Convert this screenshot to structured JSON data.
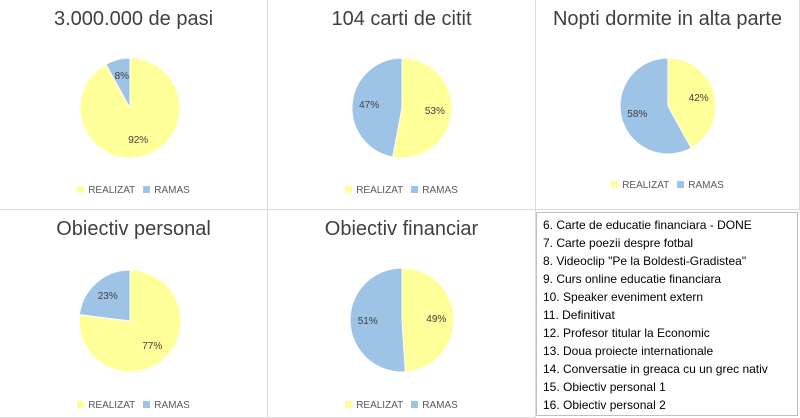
{
  "legend_labels": {
    "realizat": "REALIZAT",
    "ramas": "RAMAS"
  },
  "colors": {
    "realizat": "#FFFF99",
    "ramas": "#9DC3E6"
  },
  "chart_data": [
    {
      "type": "pie",
      "title": "3.000.000 de pasi",
      "series": [
        {
          "name": "REALIZAT",
          "value": 92,
          "label": "92%"
        },
        {
          "name": "RAMAS",
          "value": 8,
          "label": "8%"
        }
      ],
      "legend": "bottom"
    },
    {
      "type": "pie",
      "title": "104 carti de citit",
      "series": [
        {
          "name": "REALIZAT",
          "value": 53,
          "label": "53%"
        },
        {
          "name": "RAMAS",
          "value": 47,
          "label": "47%"
        }
      ],
      "legend": "bottom"
    },
    {
      "type": "pie",
      "title": "Nopti dormite in alta parte",
      "series": [
        {
          "name": "REALIZAT",
          "value": 42,
          "label": "42%"
        },
        {
          "name": "RAMAS",
          "value": 58,
          "label": "58%"
        }
      ],
      "legend": "bottom"
    },
    {
      "type": "pie",
      "title": "Obiectiv personal",
      "series": [
        {
          "name": "REALIZAT",
          "value": 77,
          "label": "77%"
        },
        {
          "name": "RAMAS",
          "value": 23,
          "label": "23%"
        }
      ],
      "legend": "bottom"
    },
    {
      "type": "pie",
      "title": "Obiectiv financiar",
      "series": [
        {
          "name": "REALIZAT",
          "value": 49,
          "label": "49%"
        },
        {
          "name": "RAMAS",
          "value": 51,
          "label": "51%"
        }
      ],
      "legend": "bottom"
    }
  ],
  "goals_list": [
    "6. Carte de educatie financiara - DONE",
    "7. Carte poezii despre fotbal",
    "8. Videoclip \"Pe la Boldesti-Gradistea\"",
    "9. Curs online educatie financiara",
    "10. Speaker eveniment extern",
    "11. Definitivat",
    "12. Profesor titular la Economic",
    "13. Doua proiecte internationale",
    "14. Conversatie in greaca cu un grec nativ",
    "15. Obiectiv personal 1",
    "16. Obiectiv personal 2"
  ]
}
